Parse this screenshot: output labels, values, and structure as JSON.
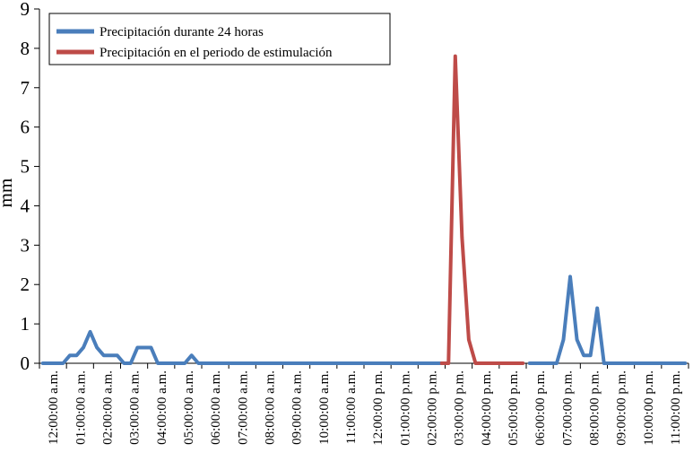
{
  "chart_data": {
    "type": "line",
    "title": "",
    "xlabel": "",
    "ylabel": "mm",
    "ylim": [
      0,
      9
    ],
    "yticks": [
      "0",
      "1",
      "2",
      "3",
      "4",
      "5",
      "6",
      "7",
      "8",
      "9"
    ],
    "grid": false,
    "legend_position": "top-left",
    "x_tick_labels": [
      "12:00:00 a.m.",
      "01:00:00 a.m.",
      "02:00:00 a.m.",
      "03:00:00 a.m.",
      "04:00:00 a.m.",
      "05:00:00 a.m.",
      "06:00:00 a.m.",
      "07:00:00 a.m.",
      "08:00:00 a.m.",
      "09:00:00 a.m.",
      "10:00:00 a.m.",
      "11:00:00 a.m.",
      "12:00:00 p.m.",
      "01:00:00 p.m.",
      "02:00:00 p.m.",
      "03:00:00 p.m.",
      "04:00:00 p.m.",
      "05:00:00 p.m.",
      "06:00:00 p.m.",
      "07:00:00 p.m.",
      "08:00:00 p.m.",
      "09:00:00 p.m.",
      "10:00:00 p.m.",
      "11:00:00 p.m."
    ],
    "points_per_hour": 4,
    "series": [
      {
        "name": "Precipitación durante 24 horas",
        "color": "#4a7ebb",
        "values": [
          0,
          0,
          0,
          0,
          0.2,
          0.2,
          0.4,
          0.8,
          0.4,
          0.2,
          0.2,
          0.2,
          0,
          0,
          0.4,
          0.4,
          0.4,
          0,
          0,
          0,
          0,
          0,
          0.2,
          0,
          0,
          0,
          0,
          0,
          0,
          0,
          0,
          0,
          0,
          0,
          0,
          0,
          0,
          0,
          0,
          0,
          0,
          0,
          0,
          0,
          0,
          0,
          0,
          0,
          0,
          0,
          0,
          0,
          0,
          0,
          0,
          0,
          0,
          0,
          0,
          0,
          null,
          null,
          null,
          null,
          null,
          null,
          null,
          null,
          null,
          null,
          null,
          null,
          0,
          0,
          0,
          0,
          0,
          0.6,
          2.2,
          0.6,
          0.2,
          0.2,
          1.4,
          0,
          0,
          0,
          0,
          0,
          0,
          0,
          0,
          0,
          0,
          0,
          0,
          0
        ]
      },
      {
        "name": "Precipitación en el periodo de estimulación",
        "color": "#be4b48",
        "values": [
          null,
          null,
          null,
          null,
          null,
          null,
          null,
          null,
          null,
          null,
          null,
          null,
          null,
          null,
          null,
          null,
          null,
          null,
          null,
          null,
          null,
          null,
          null,
          null,
          null,
          null,
          null,
          null,
          null,
          null,
          null,
          null,
          null,
          null,
          null,
          null,
          null,
          null,
          null,
          null,
          null,
          null,
          null,
          null,
          null,
          null,
          null,
          null,
          null,
          null,
          null,
          null,
          null,
          null,
          null,
          null,
          null,
          null,
          null,
          0,
          0,
          7.8,
          3.2,
          0.6,
          0,
          0,
          0,
          0,
          0,
          0,
          0,
          0,
          null,
          null,
          null,
          null,
          null,
          null,
          null,
          null,
          null,
          null,
          null,
          null,
          null,
          null,
          null,
          null,
          null,
          null,
          null,
          null,
          null,
          null,
          null,
          null
        ]
      }
    ]
  }
}
